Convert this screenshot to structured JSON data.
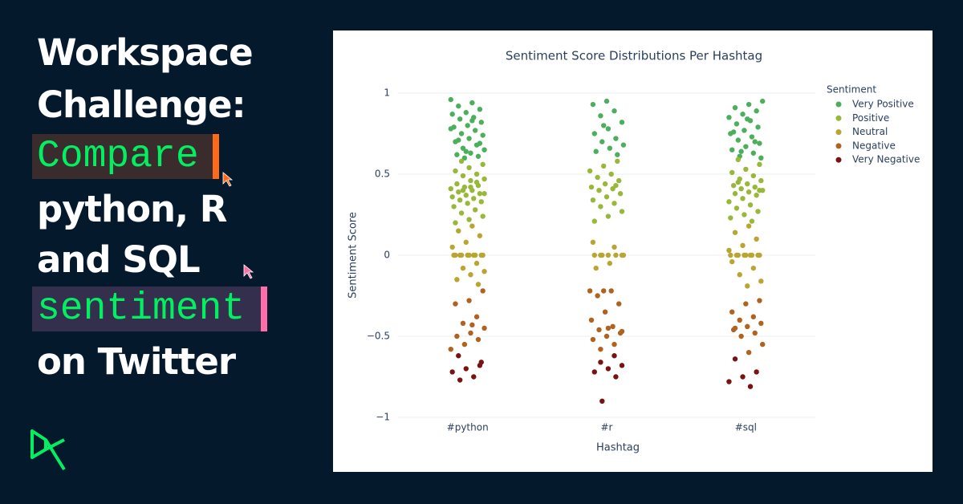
{
  "headline": {
    "lines": [
      "Workspace",
      "Challenge:",
      "Compare",
      "python, R",
      "and SQL",
      "sentiment",
      "on Twitter"
    ]
  },
  "chart_data": {
    "type": "strip",
    "title": "Sentiment Score Distributions Per Hashtag",
    "x_label": "Hashtag",
    "y_label": "Sentiment Score",
    "legend_title": "Sentiment",
    "legend": "right",
    "grid": true,
    "categories": [
      "#python",
      "#r",
      "#sql"
    ],
    "ylim": [
      -1,
      1
    ],
    "yticks": [
      1,
      0.5,
      0,
      {
        "value": -0.5,
        "label": "−0.5"
      },
      {
        "value": -1,
        "label": "−1"
      }
    ],
    "series": [
      {
        "name": "Very Positive",
        "color": "#4caf5c",
        "values": [
          [
            0.96,
            0.94,
            0.92,
            0.9,
            0.88,
            0.87,
            0.85,
            0.84,
            0.82,
            0.8,
            0.79,
            0.77,
            0.75,
            0.74,
            0.72,
            0.7,
            0.68,
            0.66,
            0.65,
            0.63,
            0.62,
            0.61,
            0.6,
            0.78,
            0.83,
            0.71,
            0.69,
            0.64
          ],
          [
            0.95,
            0.93,
            0.89,
            0.86,
            0.82,
            0.78,
            0.75,
            0.72,
            0.7,
            0.68,
            0.66,
            0.64,
            0.62,
            0.8
          ],
          [
            0.95,
            0.93,
            0.91,
            0.89,
            0.87,
            0.85,
            0.83,
            0.81,
            0.79,
            0.77,
            0.75,
            0.73,
            0.71,
            0.69,
            0.67,
            0.65,
            0.63,
            0.61,
            0.6,
            0.84,
            0.76,
            0.7,
            0.64
          ]
        ]
      },
      {
        "name": "Positive",
        "color": "#98b83a",
        "values": [
          [
            0.58,
            0.56,
            0.54,
            0.52,
            0.5,
            0.49,
            0.47,
            0.46,
            0.44,
            0.43,
            0.42,
            0.41,
            0.4,
            0.39,
            0.38,
            0.37,
            0.36,
            0.35,
            0.34,
            0.33,
            0.32,
            0.3,
            0.28,
            0.26,
            0.24,
            0.22,
            0.2,
            0.45,
            0.4,
            0.38,
            0.42
          ],
          [
            0.58,
            0.55,
            0.52,
            0.5,
            0.48,
            0.46,
            0.44,
            0.42,
            0.41,
            0.4,
            0.38,
            0.36,
            0.34,
            0.32,
            0.3,
            0.27,
            0.24,
            0.21,
            0.43
          ],
          [
            0.59,
            0.56,
            0.53,
            0.51,
            0.49,
            0.47,
            0.46,
            0.44,
            0.43,
            0.42,
            0.41,
            0.4,
            0.39,
            0.38,
            0.37,
            0.35,
            0.33,
            0.31,
            0.29,
            0.27,
            0.25,
            0.23,
            0.21,
            0.45,
            0.4
          ]
        ]
      },
      {
        "name": "Neutral",
        "color": "#b9a52f",
        "values": [
          [
            0.18,
            0.15,
            0.12,
            0.08,
            0.05,
            0,
            0,
            0,
            0,
            0,
            0,
            0,
            0,
            0,
            0,
            -0.05,
            -0.08,
            -0.1,
            -0.12,
            -0.15,
            -0.18
          ],
          [
            0.08,
            0.05,
            0,
            0,
            0,
            0,
            0,
            0,
            0,
            -0.05,
            -0.08
          ],
          [
            0.18,
            0.14,
            0.1,
            0.06,
            0.03,
            0,
            0,
            0,
            0,
            0,
            0,
            0,
            0,
            0,
            -0.04,
            -0.08,
            -0.12,
            -0.16,
            -0.19
          ]
        ]
      },
      {
        "name": "Negative",
        "color": "#b0621f",
        "values": [
          [
            -0.22,
            -0.28,
            -0.3,
            -0.38,
            -0.42,
            -0.45,
            -0.48,
            -0.5,
            -0.52,
            -0.55,
            -0.58,
            -0.43
          ],
          [
            -0.22,
            -0.22,
            -0.22,
            -0.25,
            -0.3,
            -0.35,
            -0.4,
            -0.44,
            -0.46,
            -0.48,
            -0.5,
            -0.52,
            -0.55,
            -0.58,
            -0.47,
            -0.45
          ],
          [
            -0.28,
            -0.3,
            -0.35,
            -0.38,
            -0.4,
            -0.42,
            -0.44,
            -0.46,
            -0.48,
            -0.5,
            -0.55,
            -0.6,
            -0.45
          ]
        ]
      },
      {
        "name": "Very Negative",
        "color": "#7a1212",
        "values": [
          [
            -0.62,
            -0.68,
            -0.7,
            -0.72,
            -0.75,
            -0.77,
            -0.66
          ],
          [
            -0.62,
            -0.66,
            -0.68,
            -0.7,
            -0.72,
            -0.75,
            -0.9
          ],
          [
            -0.64,
            -0.72,
            -0.75,
            -0.78,
            -0.81
          ]
        ]
      }
    ]
  }
}
